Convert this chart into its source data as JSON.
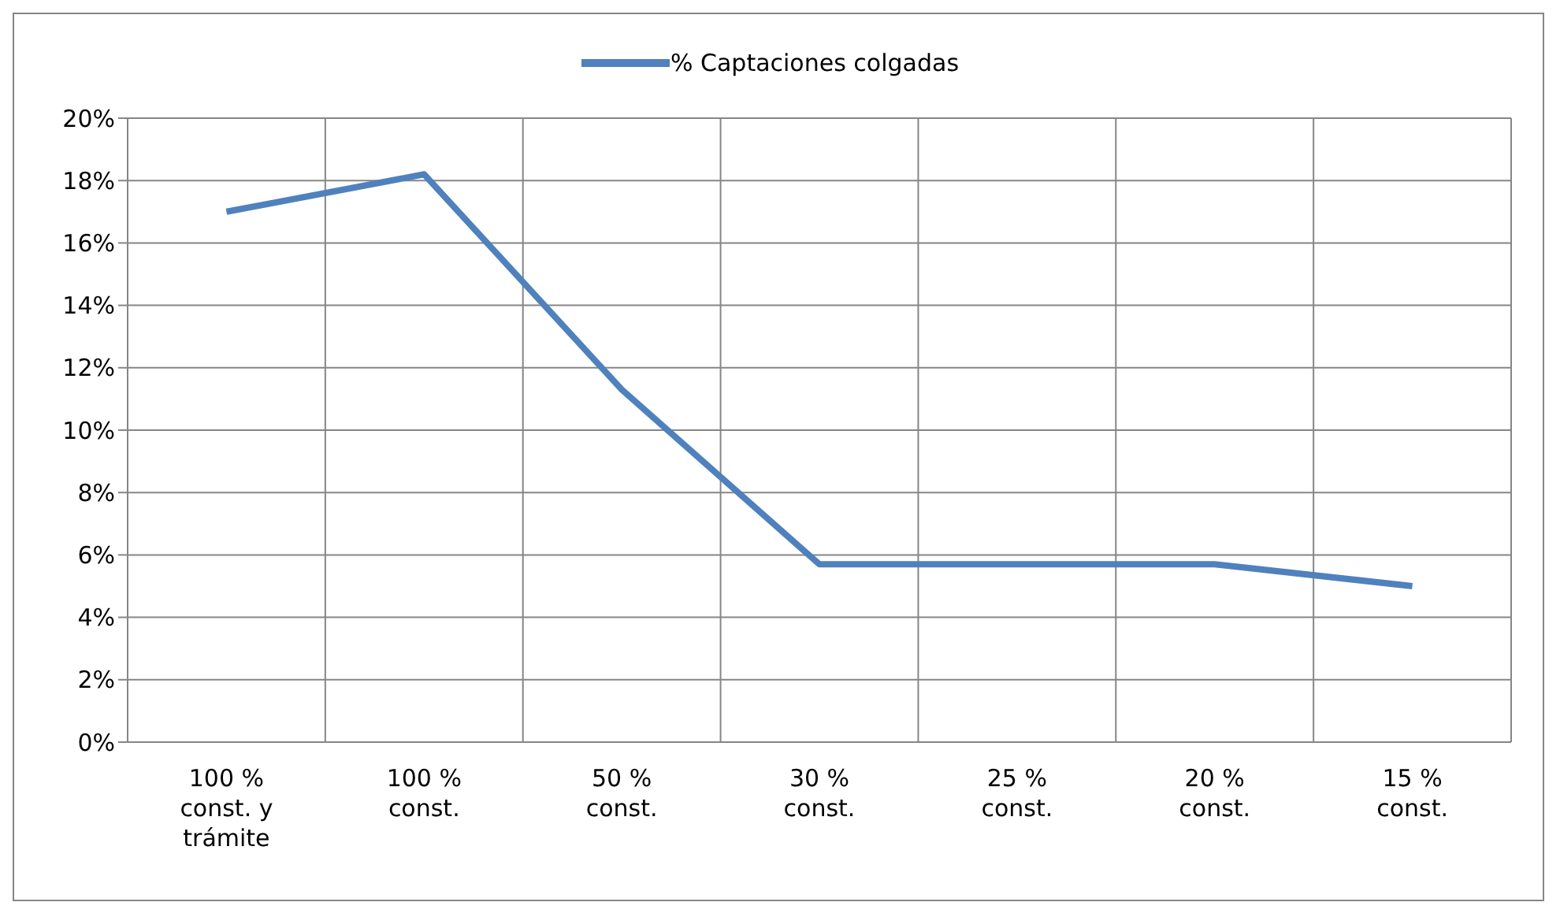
{
  "chart_data": {
    "type": "line",
    "categories": [
      "100 % const. y trámite",
      "100 % const.",
      "50 % const.",
      "30 % const.",
      "25 % const.",
      "20 % const.",
      "15 % const."
    ],
    "series": [
      {
        "name": "% Captaciones colgadas",
        "color": "#4f81bd",
        "values": [
          17.0,
          18.2,
          11.3,
          5.7,
          5.7,
          5.7,
          5.0
        ]
      }
    ],
    "ylim": [
      0,
      20
    ],
    "yticks": [
      {
        "value": 0,
        "label": "0%"
      },
      {
        "value": 2,
        "label": "2%"
      },
      {
        "value": 4,
        "label": "4%"
      },
      {
        "value": 6,
        "label": "6%"
      },
      {
        "value": 8,
        "label": "8%"
      },
      {
        "value": 10,
        "label": "10%"
      },
      {
        "value": 12,
        "label": "12%"
      },
      {
        "value": 14,
        "label": "14%"
      },
      {
        "value": 16,
        "label": "16%"
      },
      {
        "value": 18,
        "label": "18%"
      },
      {
        "value": 20,
        "label": "20%"
      }
    ],
    "grid": true,
    "legend": "top",
    "marker": "none",
    "line_style": "solid"
  }
}
